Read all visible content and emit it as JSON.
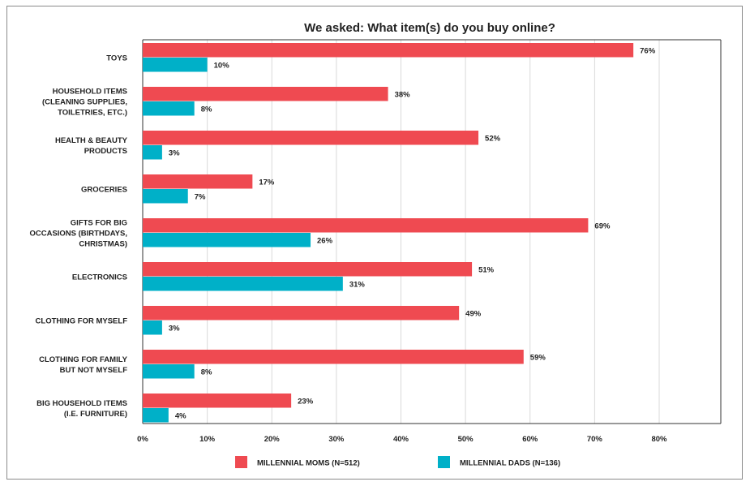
{
  "chart_data": {
    "type": "bar",
    "orientation": "horizontal",
    "title": "We asked: What item(s) do you buy online?",
    "categories": [
      [
        "TOYS"
      ],
      [
        "HOUSEHOLD ITEMS",
        "(CLEANING SUPPLIES,",
        "TOILETRIES, ETC.)"
      ],
      [
        "HEALTH & BEAUTY",
        "PRODUCTS"
      ],
      [
        "GROCERIES"
      ],
      [
        "GIFTS FOR BIG",
        "OCCASIONS (BIRTHDAYS,",
        "CHRISTMAS)"
      ],
      [
        "ELECTRONICS"
      ],
      [
        "CLOTHING FOR MYSELF"
      ],
      [
        "CLOTHING FOR FAMILY",
        "BUT NOT MYSELF"
      ],
      [
        "BIG HOUSEHOLD ITEMS",
        "(I.E. FURNITURE)"
      ]
    ],
    "series": [
      {
        "name": "MILLENNIAL MOMS (N=512)",
        "color": "#ef4a51",
        "values": [
          76,
          38,
          52,
          17,
          69,
          51,
          49,
          59,
          23
        ]
      },
      {
        "name": "MILLENNIAL DADS (N=136)",
        "color": "#00b0c8",
        "values": [
          10,
          8,
          3,
          7,
          26,
          31,
          3,
          8,
          4
        ]
      }
    ],
    "xlim": [
      0,
      80
    ],
    "xticks": [
      0,
      10,
      20,
      30,
      40,
      50,
      60,
      70,
      80
    ],
    "value_suffix": "%",
    "grid": true,
    "legend_position": "bottom"
  }
}
